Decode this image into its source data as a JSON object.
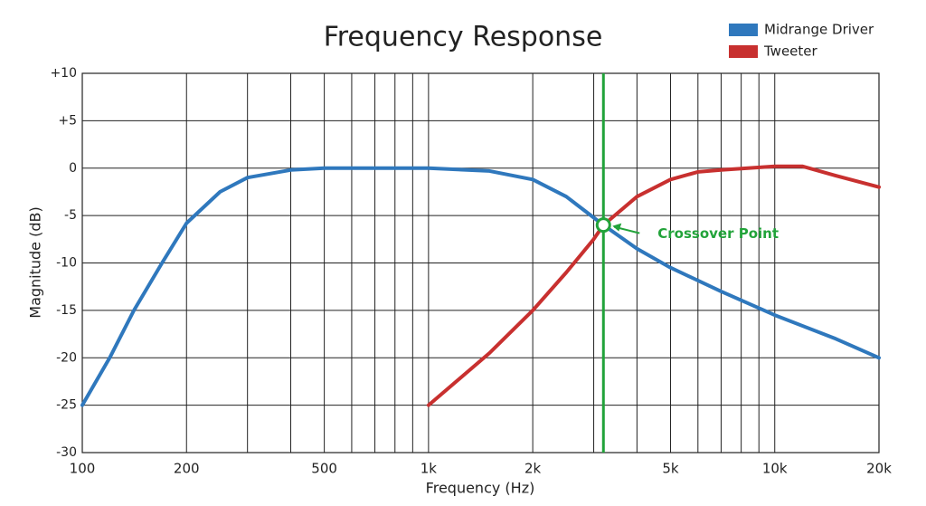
{
  "chart_data": {
    "type": "line",
    "title": "Frequency Response",
    "x_label": "Frequency (Hz)",
    "y_label": "Magnitude (dB)",
    "xscale": "log",
    "xlim": [
      100,
      20000
    ],
    "ylim": [
      -30,
      10
    ],
    "xticks": [
      100,
      200,
      500,
      {
        "value": 1000,
        "label": "1k"
      },
      {
        "value": 2000,
        "label": "2k"
      },
      {
        "value": 5000,
        "label": "5k"
      },
      {
        "value": 10000,
        "label": "10k"
      },
      {
        "value": 20000,
        "label": "20k"
      }
    ],
    "xminorticks": [
      300,
      400,
      600,
      700,
      800,
      900,
      3000,
      4000,
      6000,
      7000,
      8000,
      9000
    ],
    "yticks": [
      {
        "value": 10,
        "label": "+10"
      },
      {
        "value": 5,
        "label": "+5"
      },
      0,
      -5,
      -10,
      -15,
      -20,
      -25,
      -30
    ],
    "grid": true,
    "legend": "top-right",
    "series": [
      {
        "name": "Midrange Driver",
        "color": "#2f78bd",
        "x": [
          100,
          120,
          141,
          170,
          200,
          250,
          300,
          400,
          500,
          700,
          1000,
          1500,
          2000,
          2500,
          3200,
          4000,
          5000,
          7000,
          10000,
          15000,
          20000
        ],
        "values": [
          -25,
          -20,
          -15,
          -10,
          -5.8,
          -2.5,
          -1,
          -0.2,
          0,
          0,
          0,
          -0.3,
          -1.2,
          -3,
          -6,
          -8.5,
          -10.5,
          -13,
          -15.5,
          -18,
          -20
        ]
      },
      {
        "name": "Tweeter",
        "color": "#c8302f",
        "x": [
          1000,
          1500,
          2000,
          2500,
          3000,
          3200,
          4000,
          5000,
          6000,
          7000,
          10000,
          12000,
          15000,
          20000
        ],
        "values": [
          -25,
          -19.5,
          -15,
          -11,
          -7.5,
          -6,
          -3,
          -1.2,
          -0.4,
          -0.2,
          0.2,
          0.2,
          -0.8,
          -2
        ]
      }
    ],
    "crossover": {
      "label": "Crossover Point",
      "x": 3200,
      "y": -6,
      "color": "#22a33a"
    }
  }
}
